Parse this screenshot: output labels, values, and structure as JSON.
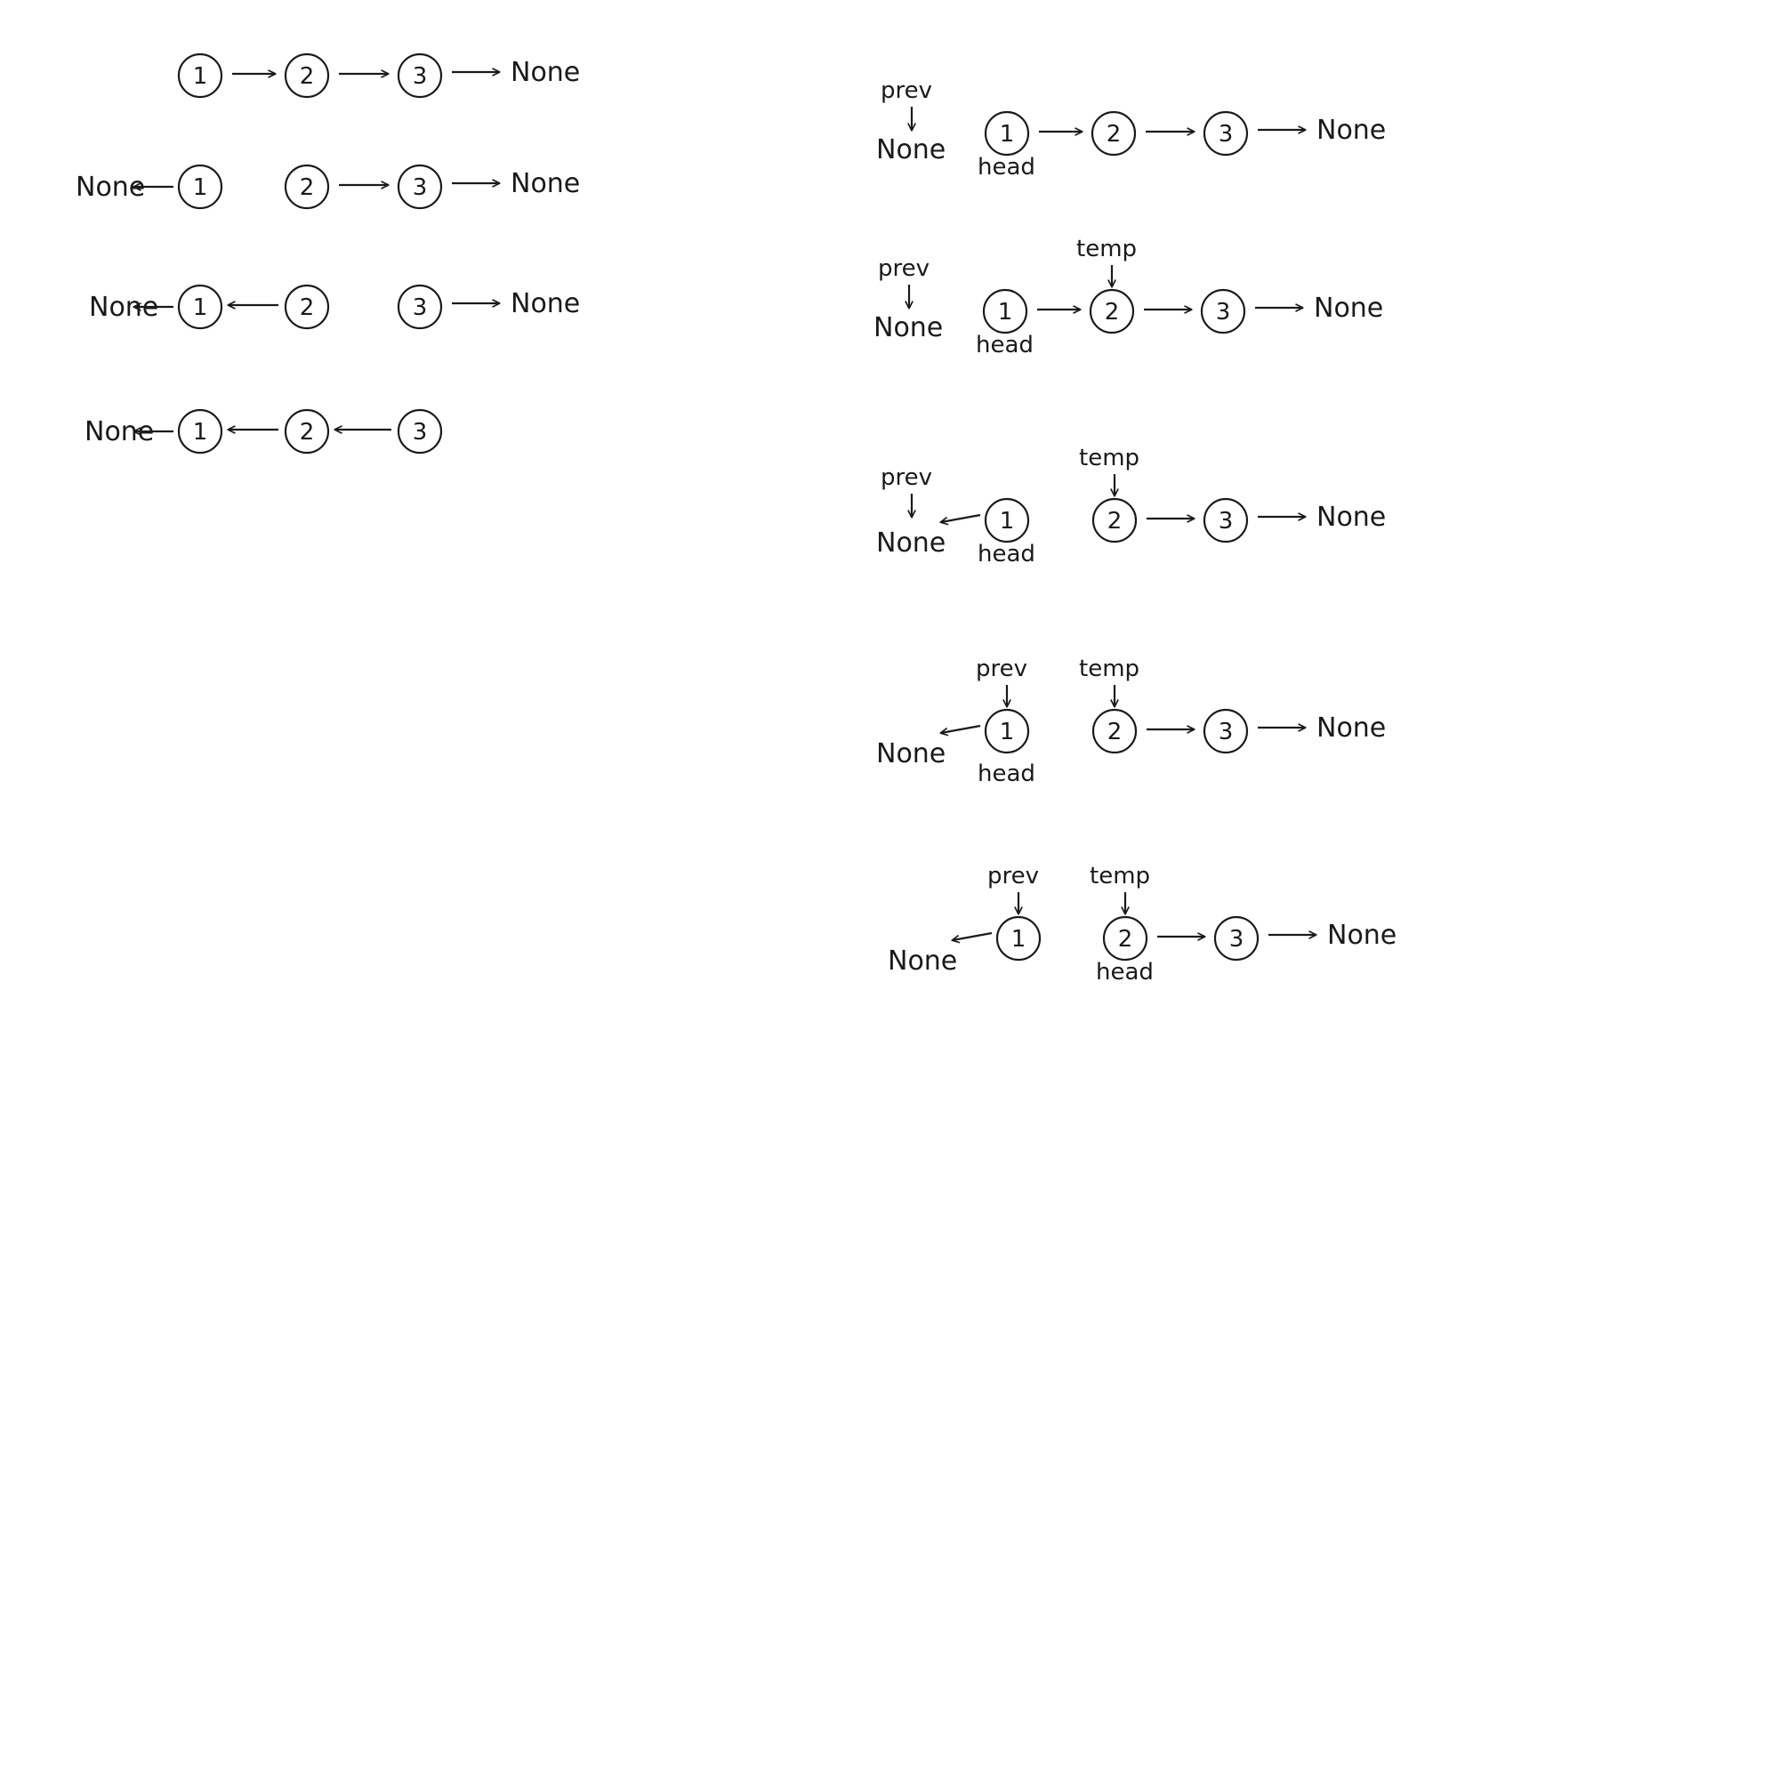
{
  "colors": {
    "ink": "#1a1a1a",
    "background": "#ffffff"
  },
  "left_panel": {
    "rows": [
      {
        "nodes": [
          "1",
          "2",
          "3"
        ],
        "links": [
          "1->2",
          "2->3",
          "3->None"
        ]
      },
      {
        "nodes": [
          "1",
          "2",
          "3"
        ],
        "links": [
          "1->None",
          "2->3",
          "3->None"
        ]
      },
      {
        "nodes": [
          "1",
          "2",
          "3"
        ],
        "links": [
          "1->None",
          "2->1",
          "3->None"
        ]
      },
      {
        "nodes": [
          "1",
          "2",
          "3"
        ],
        "links": [
          "1->None",
          "2->1",
          "3->2"
        ]
      }
    ]
  },
  "right_panel": {
    "steps": [
      {
        "nodes": [
          "1",
          "2",
          "3"
        ],
        "prev": "None",
        "head": "1",
        "temp": null,
        "links": [
          "1->2",
          "2->3",
          "3->None"
        ]
      },
      {
        "nodes": [
          "1",
          "2",
          "3"
        ],
        "prev": "None",
        "head": "1",
        "temp": "2",
        "links": [
          "1->2",
          "2->3",
          "3->None"
        ]
      },
      {
        "nodes": [
          "1",
          "2",
          "3"
        ],
        "prev": "None",
        "head": "1",
        "temp": "2",
        "links": [
          "1->None",
          "2->3",
          "3->None"
        ]
      },
      {
        "nodes": [
          "1",
          "2",
          "3"
        ],
        "prev": "1",
        "head": "1",
        "temp": "2",
        "links": [
          "1->None",
          "2->3",
          "3->None"
        ]
      },
      {
        "nodes": [
          "1",
          "2",
          "3"
        ],
        "prev": "1",
        "head": "2",
        "temp": "2",
        "links": [
          "1->None",
          "2->3",
          "3->None"
        ]
      }
    ]
  },
  "labels": {
    "none": "None",
    "prev": "prev",
    "temp": "temp",
    "head": "head"
  }
}
